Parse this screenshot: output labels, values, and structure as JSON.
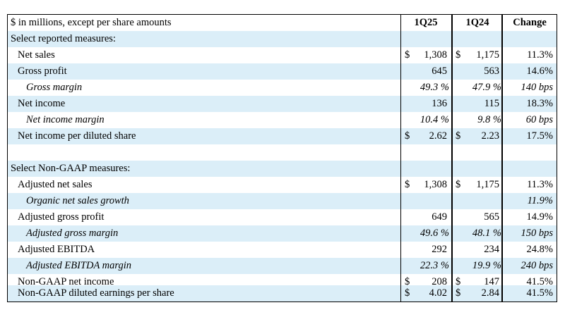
{
  "header": {
    "label": "$ in millions, except per share amounts",
    "col1": "1Q25",
    "col2": "1Q24",
    "col3": "Change"
  },
  "rows": [
    {
      "label": "Select reported measures:"
    },
    {
      "label": "Net sales",
      "c1cur": "$",
      "c1": "1,308",
      "c2cur": "$",
      "c2": "1,175",
      "c3": "11.3%"
    },
    {
      "label": "Gross profit",
      "c1": "645",
      "c2": "563",
      "c3": "14.6%"
    },
    {
      "label": "Gross margin",
      "c1": "49.3 %",
      "c2": "47.9 %",
      "c3": "140 bps"
    },
    {
      "label": "Net income",
      "c1": "136",
      "c2": "115",
      "c3": "18.3%"
    },
    {
      "label": "Net income margin",
      "c1": "10.4 %",
      "c2": "9.8 %",
      "c3": "60 bps"
    },
    {
      "label": "Net income per diluted share",
      "c1cur": "$",
      "c1": "2.62",
      "c2cur": "$",
      "c2": "2.23",
      "c3": "17.5%"
    },
    {
      "label": ""
    },
    {
      "label": "Select Non-GAAP measures:"
    },
    {
      "label": "Adjusted net sales",
      "c1cur": "$",
      "c1": "1,308",
      "c2cur": "$",
      "c2": "1,175",
      "c3": "11.3%"
    },
    {
      "label": "Organic net sales growth",
      "c3": "11.9%"
    },
    {
      "label": "Adjusted gross profit",
      "c1": "649",
      "c2": "565",
      "c3": "14.9%"
    },
    {
      "label": "Adjusted gross margin",
      "c1": "49.6 %",
      "c2": "48.1 %",
      "c3": "150 bps"
    },
    {
      "label": "Adjusted EBITDA",
      "c1": "292",
      "c2": "234",
      "c3": "24.8%"
    },
    {
      "label": "Adjusted EBITDA margin",
      "c1": "22.3 %",
      "c2": "19.9 %",
      "c3": "240 bps"
    },
    {
      "label": "Non-GAAP net income",
      "c1cur": "$",
      "c1": "208",
      "c2cur": "$",
      "c2": "147",
      "c3": "41.5%"
    },
    {
      "label": "Non-GAAP diluted earnings per share",
      "c1cur": "$",
      "c1": "4.02",
      "c2cur": "$",
      "c2": "2.84",
      "c3": "41.5%"
    }
  ]
}
